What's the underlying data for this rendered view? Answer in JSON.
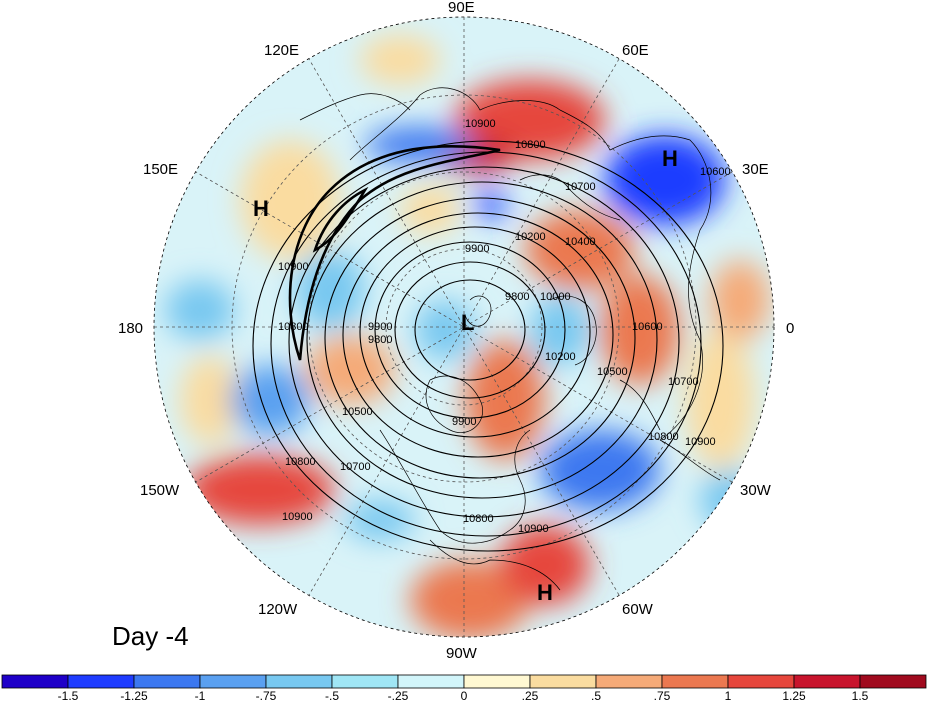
{
  "panel_label": "Day -4",
  "longitude_labels": [
    "90E",
    "60E",
    "30E",
    "0",
    "30W",
    "60W",
    "90W",
    "120W",
    "150W",
    "180",
    "150E",
    "120E"
  ],
  "pressure_centers": [
    {
      "name": "high-center-siberia",
      "label": "H"
    },
    {
      "name": "high-center-europe",
      "label": "H"
    },
    {
      "name": "high-center-caribbean",
      "label": "H"
    },
    {
      "name": "low-center-pole",
      "label": "L"
    }
  ],
  "contour_labels": [
    "10900",
    "10800",
    "10700",
    "10600",
    "10400",
    "10200",
    "10000",
    "9900",
    "9900",
    "9800",
    "9800",
    "10200",
    "10500",
    "10600",
    "10700",
    "10800",
    "10900",
    "10900",
    "10800",
    "10900",
    "10800",
    "10700",
    "10500",
    "9900",
    "10900",
    "10800",
    "10900"
  ],
  "colorbar": {
    "ticks": [
      "-1.5",
      "-1.25",
      "-1",
      "-.75",
      "-.5",
      "-.25",
      "0",
      ".25",
      ".5",
      ".75",
      "1",
      "1.25",
      "1.5"
    ],
    "colors": [
      "#1e00c8",
      "#1e3cff",
      "#3c78f0",
      "#5aa0f0",
      "#78c8f0",
      "#a0e6f5",
      "#d2f5fa",
      "#fff8d2",
      "#fadca0",
      "#f5aa78",
      "#eb7850",
      "#e6463c",
      "#c8142d",
      "#a00a1e"
    ]
  }
}
